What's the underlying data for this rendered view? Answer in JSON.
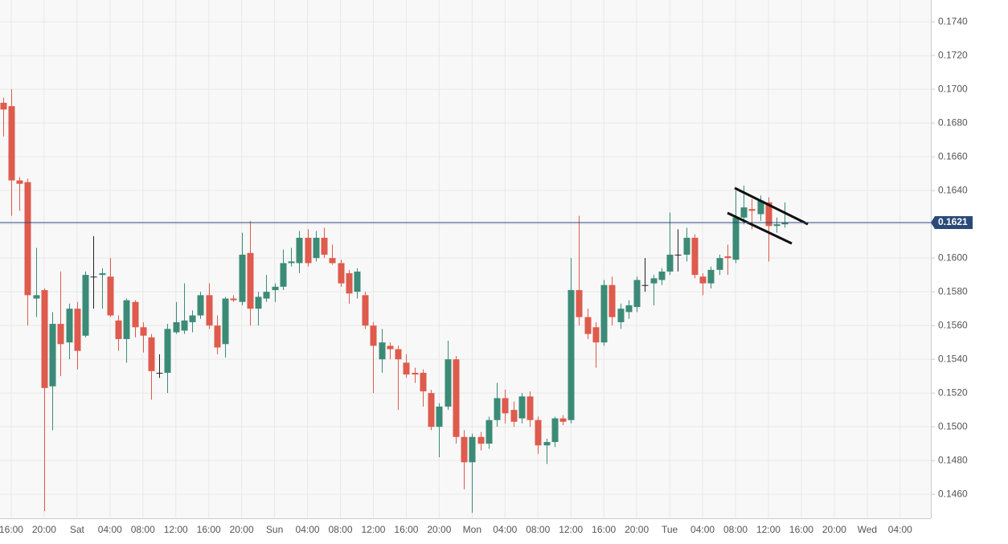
{
  "chart_data": {
    "type": "candlestick",
    "x": [
      -1,
      0,
      1,
      2,
      3,
      4,
      5,
      6,
      7,
      8,
      9,
      10,
      11,
      12,
      13,
      14,
      15,
      16,
      17,
      18,
      19,
      20,
      21,
      22,
      23,
      24,
      25,
      26,
      27,
      28,
      29,
      30,
      31,
      32,
      33,
      34,
      35,
      36,
      37,
      38,
      39,
      40,
      41,
      42,
      43,
      44,
      45,
      46,
      47,
      48,
      49,
      50,
      51,
      52,
      53,
      54,
      55,
      56,
      57,
      58,
      59,
      60,
      61,
      62,
      63,
      64,
      65,
      66,
      67,
      68,
      69,
      70,
      71,
      72,
      73,
      74,
      75,
      76,
      77,
      78,
      79,
      80,
      81,
      82,
      83,
      84,
      85,
      86,
      87,
      88,
      89,
      90,
      91,
      92,
      93,
      94
    ],
    "open": [
      0.1692,
      0.169,
      0.1646,
      0.1645,
      0.1576,
      0.1581,
      0.1524,
      0.1561,
      0.155,
      0.157,
      0.1554,
      0.1589,
      0.159,
      0.1589,
      0.1563,
      0.1552,
      0.1574,
      0.1559,
      0.1553,
      0.1532,
      0.1532,
      0.1556,
      0.1557,
      0.1562,
      0.1566,
      0.1578,
      0.156,
      0.1549,
      0.1576,
      0.1574,
      0.1603,
      0.157,
      0.1576,
      0.1581,
      0.1583,
      0.1597,
      0.1597,
      0.1612,
      0.16,
      0.1612,
      0.16,
      0.1597,
      0.1591,
      0.158,
      0.1578,
      0.156,
      0.154,
      0.1548,
      0.1546,
      0.1538,
      0.1532,
      0.1532,
      0.152,
      0.15,
      0.1512,
      0.154,
      0.1494,
      0.1479,
      0.1494,
      0.149,
      0.1504,
      0.1517,
      0.151,
      0.1505,
      0.1518,
      0.1504,
      0.1489,
      0.1491,
      0.1505,
      0.1504,
      0.1581,
      0.1565,
      0.1559,
      0.155,
      0.1584,
      0.1562,
      0.1568,
      0.1571,
      0.1584,
      0.1585,
      0.1587,
      0.1592,
      0.1602,
      0.1602,
      0.1612,
      0.1589,
      0.1585,
      0.1593,
      0.1601,
      0.1599,
      0.1624,
      0.1629,
      0.1626,
      0.1633,
      0.1619,
      0.162
    ],
    "high": [
      0.1695,
      0.17,
      0.1648,
      0.1647,
      0.1606,
      0.1582,
      0.1568,
      0.1592,
      0.1573,
      0.1574,
      0.1592,
      0.1613,
      0.1594,
      0.16,
      0.1566,
      0.1576,
      0.1575,
      0.1562,
      0.1555,
      0.1543,
      0.1561,
      0.1574,
      0.1585,
      0.1569,
      0.158,
      0.1585,
      0.1566,
      0.1577,
      0.1578,
      0.1615,
      0.1622,
      0.158,
      0.159,
      0.1585,
      0.1605,
      0.1606,
      0.1616,
      0.1617,
      0.1616,
      0.1618,
      0.1608,
      0.1599,
      0.1593,
      0.1594,
      0.158,
      0.1562,
      0.1558,
      0.155,
      0.1548,
      0.1543,
      0.1535,
      0.1534,
      0.1522,
      0.1514,
      0.1551,
      0.1542,
      0.1498,
      0.1496,
      0.1497,
      0.1506,
      0.1526,
      0.1522,
      0.1515,
      0.152,
      0.1521,
      0.1506,
      0.1493,
      0.1506,
      0.1507,
      0.16,
      0.1625,
      0.157,
      0.1562,
      0.1587,
      0.1589,
      0.1573,
      0.1575,
      0.1589,
      0.16,
      0.159,
      0.1594,
      0.1627,
      0.1617,
      0.1618,
      0.1614,
      0.1591,
      0.1595,
      0.1602,
      0.1608,
      0.164,
      0.1643,
      0.1635,
      0.1637,
      0.1636,
      0.1624,
      0.1633
    ],
    "low": [
      0.1672,
      0.1625,
      0.1628,
      0.156,
      0.1565,
      0.145,
      0.1498,
      0.153,
      0.154,
      0.1534,
      0.1553,
      0.157,
      0.157,
      0.1565,
      0.1545,
      0.1538,
      0.1553,
      0.1544,
      0.1516,
      0.1529,
      0.152,
      0.1555,
      0.1555,
      0.1556,
      0.1564,
      0.1558,
      0.1543,
      0.1541,
      0.1574,
      0.1572,
      0.156,
      0.156,
      0.1574,
      0.1574,
      0.1581,
      0.1595,
      0.1591,
      0.1595,
      0.1598,
      0.16,
      0.1596,
      0.1583,
      0.1573,
      0.1576,
      0.1558,
      0.152,
      0.1532,
      0.154,
      0.151,
      0.1529,
      0.1526,
      0.1512,
      0.1498,
      0.1482,
      0.151,
      0.149,
      0.1463,
      0.1449,
      0.1486,
      0.1487,
      0.15,
      0.1502,
      0.15,
      0.1502,
      0.15,
      0.1484,
      0.1478,
      0.1488,
      0.1501,
      0.1502,
      0.156,
      0.1552,
      0.1535,
      0.1548,
      0.156,
      0.1558,
      0.1564,
      0.1568,
      0.158,
      0.1572,
      0.1584,
      0.159,
      0.1592,
      0.1598,
      0.1588,
      0.1578,
      0.1582,
      0.159,
      0.159,
      0.1597,
      0.162,
      0.1617,
      0.1622,
      0.1598,
      0.1615,
      0.1618
    ],
    "close": [
      0.1688,
      0.1646,
      0.1644,
      0.1578,
      0.1578,
      0.1523,
      0.1561,
      0.1549,
      0.157,
      0.1545,
      0.159,
      0.1589,
      0.1591,
      0.1566,
      0.1552,
      0.1575,
      0.1559,
      0.1554,
      0.1533,
      0.1532,
      0.1558,
      0.1562,
      0.1563,
      0.1566,
      0.1578,
      0.156,
      0.1547,
      0.1576,
      0.1575,
      0.1602,
      0.157,
      0.1577,
      0.158,
      0.1583,
      0.1597,
      0.1598,
      0.1612,
      0.1597,
      0.1612,
      0.1602,
      0.1597,
      0.1585,
      0.1579,
      0.1592,
      0.156,
      0.1548,
      0.155,
      0.1546,
      0.154,
      0.1531,
      0.1531,
      0.1521,
      0.15,
      0.1512,
      0.154,
      0.1494,
      0.1479,
      0.1494,
      0.149,
      0.1504,
      0.1517,
      0.1508,
      0.1503,
      0.1518,
      0.1504,
      0.1489,
      0.1491,
      0.1505,
      0.1503,
      0.1581,
      0.1565,
      0.1555,
      0.155,
      0.1584,
      0.1565,
      0.157,
      0.1572,
      0.1587,
      0.1584,
      0.1588,
      0.1592,
      0.1602,
      0.1602,
      0.1612,
      0.159,
      0.1585,
      0.1593,
      0.16,
      0.16,
      0.1624,
      0.163,
      0.1628,
      0.1634,
      0.1619,
      0.162,
      0.1621
    ],
    "up_color": "#3b8b77",
    "down_color": "#de5b4d",
    "flat_color": "#222222",
    "last_price": 0.1621,
    "last_price_color": "#2b4a78",
    "xlim": [
      -1.36,
      111.73
    ],
    "xticks": [
      {
        "value": 0,
        "label": "16:00"
      },
      {
        "value": 4,
        "label": "20:00"
      },
      {
        "value": 8,
        "label": "Sat"
      },
      {
        "value": 12,
        "label": "04:00"
      },
      {
        "value": 16,
        "label": "08:00"
      },
      {
        "value": 20,
        "label": "12:00"
      },
      {
        "value": 24,
        "label": "16:00"
      },
      {
        "value": 28,
        "label": "20:00"
      },
      {
        "value": 32,
        "label": "Sun"
      },
      {
        "value": 36,
        "label": "04:00"
      },
      {
        "value": 40,
        "label": "08:00"
      },
      {
        "value": 44,
        "label": "12:00"
      },
      {
        "value": 48,
        "label": "16:00"
      },
      {
        "value": 52,
        "label": "20:00"
      },
      {
        "value": 56,
        "label": "Mon"
      },
      {
        "value": 60,
        "label": "04:00"
      },
      {
        "value": 64,
        "label": "08:00"
      },
      {
        "value": 68,
        "label": "12:00"
      },
      {
        "value": 72,
        "label": "16:00"
      },
      {
        "value": 76,
        "label": "20:00"
      },
      {
        "value": 80,
        "label": "Tue"
      },
      {
        "value": 84,
        "label": "04:00"
      },
      {
        "value": 88,
        "label": "08:00"
      },
      {
        "value": 92,
        "label": "12:00"
      },
      {
        "value": 96,
        "label": "16:00"
      },
      {
        "value": 100,
        "label": "20:00"
      },
      {
        "value": 104,
        "label": "Wed"
      },
      {
        "value": 108,
        "label": "04:00"
      }
    ],
    "ylim": [
      0.14458,
      0.17529
    ],
    "yticks": [
      {
        "value": 0.146,
        "label": "0.1460"
      },
      {
        "value": 0.148,
        "label": "0.1480"
      },
      {
        "value": 0.15,
        "label": "0.1500"
      },
      {
        "value": 0.152,
        "label": "0.1520"
      },
      {
        "value": 0.154,
        "label": "0.1540"
      },
      {
        "value": 0.156,
        "label": "0.1560"
      },
      {
        "value": 0.158,
        "label": "0.1580"
      },
      {
        "value": 0.16,
        "label": "0.1600"
      },
      {
        "value": 0.162,
        "label": "0.1620"
      },
      {
        "value": 0.164,
        "label": "0.1640"
      },
      {
        "value": 0.166,
        "label": "0.1660"
      },
      {
        "value": 0.168,
        "label": "0.1680"
      },
      {
        "value": 0.17,
        "label": "0.1700"
      },
      {
        "value": 0.172,
        "label": "0.1720"
      },
      {
        "value": 0.174,
        "label": "0.1740"
      }
    ],
    "grid": true
  }
}
